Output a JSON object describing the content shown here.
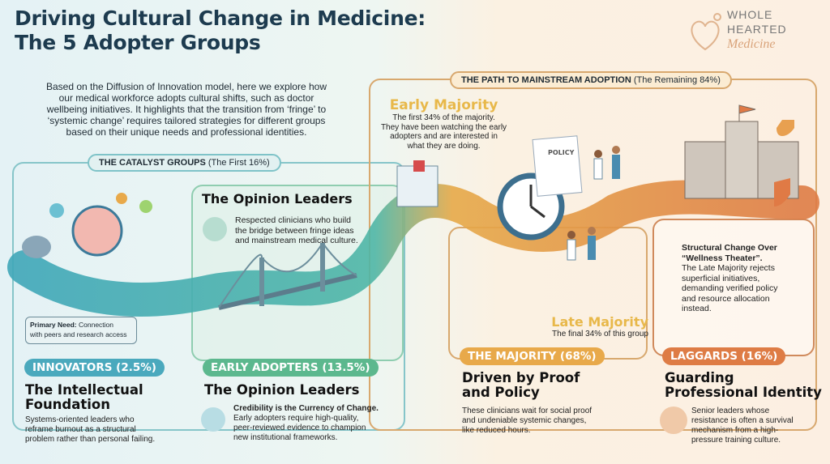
{
  "title": {
    "line1": "Driving Cultural Change in Medicine:",
    "line2": "The 5 Adopter Groups"
  },
  "logo": {
    "line1": "WHOLE",
    "line2": "HEARTED",
    "line3": "Medicine"
  },
  "description": [
    "Based on the Diffusion of Innovation model, here we explore how",
    "our medical workforce adopts cultural shifts, such as doctor",
    "wellbeing initiatives. It highlights that the transition from ‘fringe’ to",
    "‘systemic change’ requires tailored strategies for different groups",
    "based on their unique needs and professional identities."
  ],
  "catalyst": {
    "label_bold": "THE CATALYST GROUPS",
    "label_rest": "(The First 16%)"
  },
  "path": {
    "label_bold": "THE PATH TO MAINSTREAM ADOPTION",
    "label_rest": "(The Remaining 84%)"
  },
  "innovators": {
    "tag": "INNOVATORS (2.5%)",
    "heading1": "The Intellectual",
    "heading2": "Foundation",
    "text": [
      "Systems-oriented leaders who",
      "reframe burnout as a structural",
      "problem rather than personal failing."
    ],
    "need_bold": "Primary Need:",
    "need_rest": " Connection",
    "need_line2": "with peers and research access"
  },
  "opinion_box": {
    "heading": "The Opinion Leaders",
    "text": [
      "Respected clinicians who build",
      "the bridge between fringe ideas",
      "and mainstream medical culture."
    ]
  },
  "early_adopters": {
    "tag": "EARLY ADOPTERS (13.5%)",
    "heading": "The Opinion Leaders",
    "bold": "Credibility is the Currency of Change.",
    "text": [
      "Early adopters require high-quality,",
      "peer-reviewed evidence to champion",
      "new institutional frameworks."
    ]
  },
  "early_majority": {
    "heading": "Early Majority",
    "text": [
      "The first 34% of the majority.",
      "They have been watching the early",
      "adopters and are interested in",
      "what they are doing."
    ]
  },
  "policy_doc": "POLICY",
  "late_majority": {
    "heading": "Late Majority",
    "text": "The final 34% of this group"
  },
  "structural": {
    "bold1": "Structural Change Over",
    "bold2": "“Wellness Theater”.",
    "text": [
      "The Late Majority rejects",
      "superficial initiatives,",
      "demanding verified policy",
      "and resource allocation",
      "instead."
    ]
  },
  "majority": {
    "tag": "THE MAJORITY (68%)",
    "heading1": "Driven by Proof",
    "heading2": "and Policy",
    "text": [
      "These clinicians wait for social proof",
      "and undeniable systemic changes,",
      "like reduced hours."
    ]
  },
  "laggards": {
    "tag": "LAGGARDS (16%)",
    "heading1": "Guarding",
    "heading2": "Professional Identity",
    "text": [
      "Senior leaders whose",
      "resistance is often a survival",
      "mechanism from a high-",
      "pressure training culture."
    ]
  },
  "colors": {
    "teal": "#4aa9bd",
    "green": "#5cb88e",
    "gold": "#e8a94a",
    "orange": "#de7c45",
    "navy": "#1d3b4f"
  }
}
